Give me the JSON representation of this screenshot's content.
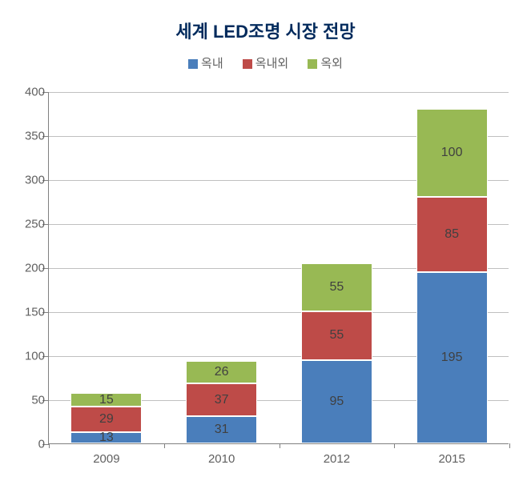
{
  "chart": {
    "type": "stacked-bar",
    "title": "세계 LED조명 시장 전망",
    "title_color": "#002a5c",
    "title_fontsize": 22,
    "background_color": "#ffffff",
    "legend": {
      "items": [
        {
          "label": "옥내",
          "color": "#4a7ebb"
        },
        {
          "label": "옥내외",
          "color": "#be4b48"
        },
        {
          "label": "옥외",
          "color": "#98b954"
        }
      ],
      "fontsize": 15,
      "text_color": "#606060"
    },
    "y_axis": {
      "min": 0,
      "max": 400,
      "tick_step": 50,
      "label_fontsize": 15,
      "label_color": "#606060",
      "gridline_color": "#c0c0c0",
      "axis_color": "#808080"
    },
    "x_axis": {
      "label_fontsize": 15,
      "label_color": "#606060",
      "axis_color": "#808080"
    },
    "series_colors": {
      "indoor": "#4a7ebb",
      "both": "#be4b48",
      "outdoor": "#98b954"
    },
    "value_label_fontsize": 16,
    "value_label_color": "#404040",
    "bar_width_ratio": 0.62,
    "categories": [
      "2009",
      "2010",
      "2012",
      "2015"
    ],
    "data": [
      {
        "year": "2009",
        "indoor": 13,
        "both": 29,
        "outdoor": 15
      },
      {
        "year": "2010",
        "indoor": 31,
        "both": 37,
        "outdoor": 26
      },
      {
        "year": "2012",
        "indoor": 95,
        "both": 55,
        "outdoor": 55
      },
      {
        "year": "2015",
        "indoor": 195,
        "both": 85,
        "outdoor": 100
      }
    ]
  }
}
